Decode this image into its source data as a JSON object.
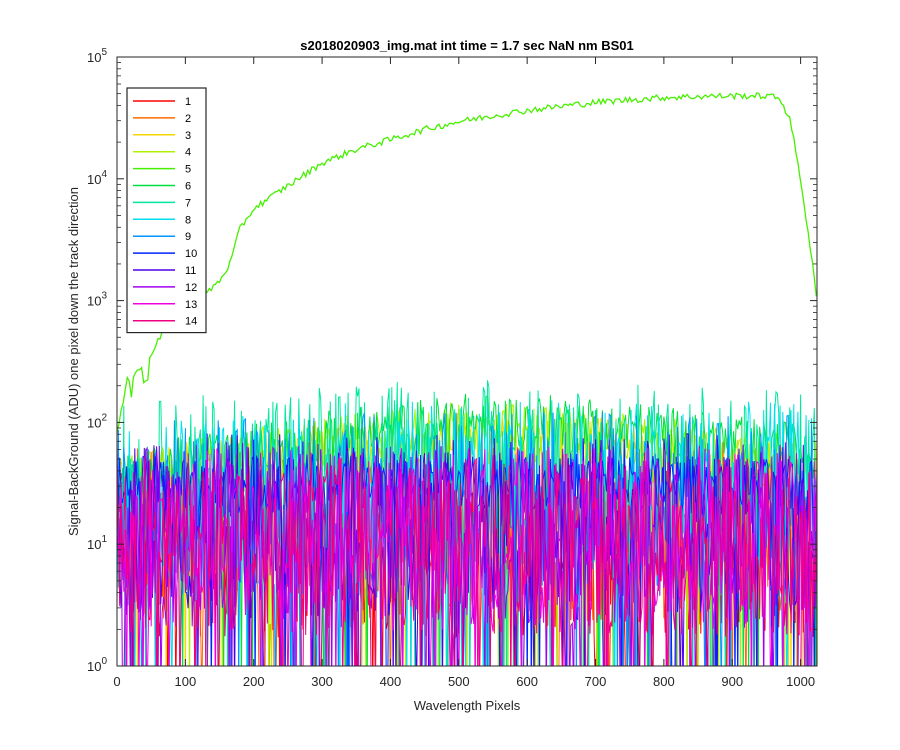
{
  "chart_data": {
    "type": "line",
    "title": "s2018020903_img.mat int time = 1.7 sec  NaN nm BS01",
    "xlabel": "Wavelength Pixels",
    "ylabel": "Signal-BackGround (ADU) one pixel down the track direction",
    "xlim": [
      0,
      1024
    ],
    "ylim": [
      1,
      100000
    ],
    "yscale": "log",
    "x_ticks": [
      0,
      100,
      200,
      300,
      400,
      500,
      600,
      700,
      800,
      900,
      1000
    ],
    "y_tick_exponents": [
      0,
      1,
      2,
      3,
      4,
      5
    ],
    "y_tick_base": "10",
    "grid": false,
    "legend_position": "top-left",
    "series": [
      {
        "name": "1",
        "color": "#ff0000",
        "profile": [
          [
            0,
            10
          ],
          [
            1024,
            10
          ]
        ]
      },
      {
        "name": "2",
        "color": "#ff6a00",
        "profile": [
          [
            0,
            12
          ],
          [
            1024,
            12
          ]
        ]
      },
      {
        "name": "3",
        "color": "#f2d600",
        "profile": [
          [
            0,
            28
          ],
          [
            100,
            40
          ],
          [
            250,
            52
          ],
          [
            500,
            70
          ],
          [
            700,
            65
          ],
          [
            900,
            45
          ],
          [
            1024,
            40
          ]
        ]
      },
      {
        "name": "4",
        "color": "#b0f000",
        "profile": [
          [
            0,
            30
          ],
          [
            100,
            42
          ],
          [
            250,
            58
          ],
          [
            500,
            85
          ],
          [
            700,
            78
          ],
          [
            900,
            52
          ],
          [
            1024,
            45
          ]
        ]
      },
      {
        "name": "5",
        "color": "#47f000",
        "profile": [
          [
            0,
            80
          ],
          [
            15,
            220
          ],
          [
            40,
            300
          ],
          [
            60,
            460
          ],
          [
            80,
            740
          ],
          [
            110,
            900
          ],
          [
            130,
            1150
          ],
          [
            150,
            1450
          ],
          [
            165,
            2000
          ],
          [
            180,
            3900
          ],
          [
            200,
            5700
          ],
          [
            250,
            8800
          ],
          [
            300,
            13500
          ],
          [
            350,
            17500
          ],
          [
            400,
            21000
          ],
          [
            450,
            25500
          ],
          [
            500,
            29500
          ],
          [
            550,
            33000
          ],
          [
            600,
            36500
          ],
          [
            650,
            39500
          ],
          [
            700,
            42500
          ],
          [
            750,
            44500
          ],
          [
            800,
            46500
          ],
          [
            850,
            47500
          ],
          [
            900,
            48000
          ],
          [
            950,
            48000
          ],
          [
            970,
            46000
          ],
          [
            985,
            30000
          ],
          [
            1000,
            10000
          ],
          [
            1015,
            2500
          ],
          [
            1024,
            1000
          ]
        ]
      },
      {
        "name": "6",
        "color": "#00e040",
        "profile": [
          [
            0,
            30
          ],
          [
            100,
            45
          ],
          [
            250,
            65
          ],
          [
            500,
            100
          ],
          [
            700,
            95
          ],
          [
            900,
            65
          ],
          [
            1024,
            55
          ]
        ]
      },
      {
        "name": "7",
        "color": "#00e8a0",
        "profile": [
          [
            0,
            25
          ],
          [
            250,
            35
          ],
          [
            500,
            40
          ],
          [
            900,
            35
          ],
          [
            1024,
            30
          ]
        ]
      },
      {
        "name": "8",
        "color": "#00e0f0",
        "profile": [
          [
            0,
            20
          ],
          [
            500,
            28
          ],
          [
            1024,
            25
          ]
        ]
      },
      {
        "name": "9",
        "color": "#0095ff",
        "profile": [
          [
            0,
            18
          ],
          [
            500,
            22
          ],
          [
            1024,
            20
          ]
        ]
      },
      {
        "name": "10",
        "color": "#0024ff",
        "profile": [
          [
            0,
            30
          ],
          [
            250,
            32
          ],
          [
            500,
            35
          ],
          [
            900,
            30
          ],
          [
            1024,
            28
          ]
        ]
      },
      {
        "name": "11",
        "color": "#4b00e8",
        "profile": [
          [
            0,
            14
          ],
          [
            1024,
            14
          ]
        ]
      },
      {
        "name": "12",
        "color": "#a200f0",
        "profile": [
          [
            0,
            12
          ],
          [
            1024,
            12
          ]
        ]
      },
      {
        "name": "13",
        "color": "#f000e0",
        "profile": [
          [
            0,
            11
          ],
          [
            1024,
            11
          ]
        ]
      },
      {
        "name": "14",
        "color": "#f00080",
        "profile": [
          [
            0,
            10
          ],
          [
            1024,
            10
          ]
        ]
      }
    ]
  }
}
